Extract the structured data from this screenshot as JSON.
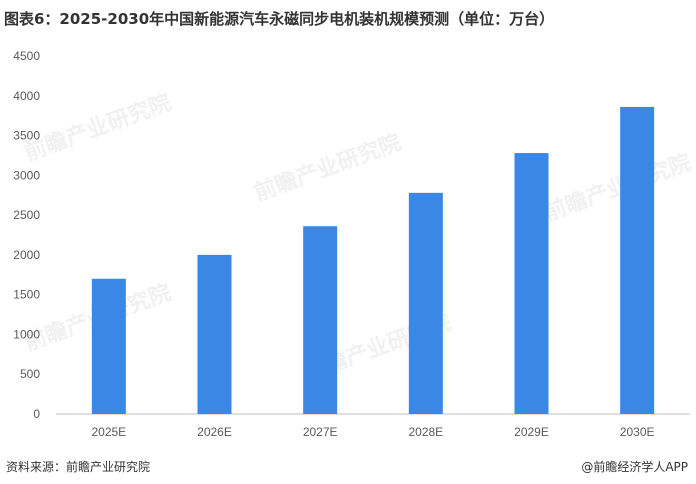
{
  "title": "图表6：2025-2030年中国新能源汽车永磁同步电机装机规模预测（单位：万台）",
  "source": "资料来源：前瞻产业研究院",
  "credit": "@前瞻经济学人APP",
  "watermark": "前瞻产业研究院",
  "colors": {
    "bar": "#3a87e6",
    "axis": "#bfbfbf",
    "text": "#595959"
  },
  "chart_data": {
    "type": "bar",
    "categories": [
      "2025E",
      "2026E",
      "2027E",
      "2028E",
      "2029E",
      "2030E"
    ],
    "values": [
      1700,
      2000,
      2360,
      2780,
      3280,
      3860
    ],
    "yticks": [
      0,
      500,
      1000,
      1500,
      2000,
      2500,
      3000,
      3500,
      4000,
      4500
    ],
    "ylim": [
      0,
      4500
    ],
    "grid": false,
    "legend": "none"
  }
}
